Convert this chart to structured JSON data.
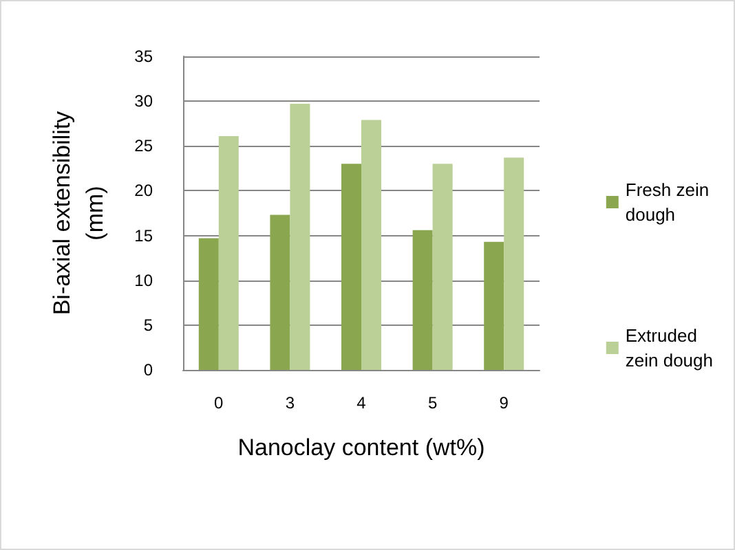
{
  "chart_data": {
    "type": "bar",
    "xlabel": "Nanoclay content (wt%)",
    "ylabel": "Bi-axial extensibility\n(mm)",
    "categories": [
      "0",
      "3",
      "4",
      "5",
      "9"
    ],
    "series": [
      {
        "name": "Fresh zein\ndough",
        "color": "#8aa74f",
        "values": [
          14.7,
          17.3,
          23.0,
          15.6,
          14.3
        ]
      },
      {
        "name": "Extruded\nzein dough",
        "color": "#bad097",
        "values": [
          26.1,
          29.7,
          27.9,
          23.0,
          23.7
        ]
      }
    ],
    "ylim": [
      0,
      35
    ],
    "yticks": [
      0,
      5,
      10,
      15,
      20,
      25,
      30,
      35
    ],
    "grid": "y",
    "legend": "right"
  }
}
